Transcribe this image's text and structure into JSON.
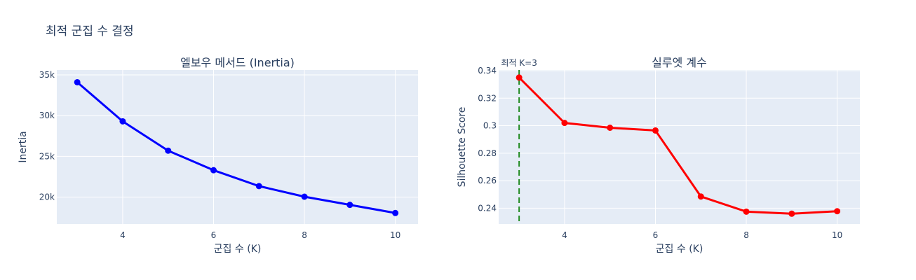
{
  "figure": {
    "title": "최적 군집 수 결정"
  },
  "chart_data": [
    {
      "type": "line",
      "title": "엘보우 메서드 (Inertia)",
      "xlabel": "군집 수 (K)",
      "ylabel": "Inertia",
      "x": [
        3,
        4,
        5,
        6,
        7,
        8,
        9,
        10
      ],
      "series": [
        {
          "values": [
            34100,
            29300,
            25700,
            23300,
            21350,
            20050,
            19050,
            18050
          ],
          "color": "#0000ff"
        }
      ],
      "xlim": [
        2.55,
        10.5
      ],
      "ylim": [
        16700,
        35600
      ],
      "x_ticks": [
        4,
        6,
        8,
        10
      ],
      "y_ticks": [
        20000,
        25000,
        30000,
        35000
      ],
      "y_tick_labels": [
        "20k",
        "25k",
        "30k",
        "35k"
      ],
      "grid": true
    },
    {
      "type": "line",
      "title": "실루엣 계수",
      "xlabel": "군집 수 (K)",
      "ylabel": "Silhouette Score",
      "x": [
        3,
        4,
        5,
        6,
        7,
        8,
        9,
        10
      ],
      "series": [
        {
          "values": [
            0.335,
            0.302,
            0.2985,
            0.2965,
            0.2485,
            0.2375,
            0.236,
            0.2378
          ],
          "color": "#ff0000"
        }
      ],
      "xlim": [
        2.55,
        10.5
      ],
      "ylim": [
        0.2285,
        0.3405
      ],
      "x_ticks": [
        4,
        6,
        8,
        10
      ],
      "y_ticks": [
        0.24,
        0.26,
        0.28,
        0.3,
        0.32,
        0.34
      ],
      "y_tick_labels": [
        "0.24",
        "0.26",
        "0.28",
        "0.3",
        "0.32",
        "0.34"
      ],
      "grid": true,
      "vline": {
        "x": 3,
        "color": "#228B22",
        "label": "최적 K=3"
      }
    }
  ]
}
